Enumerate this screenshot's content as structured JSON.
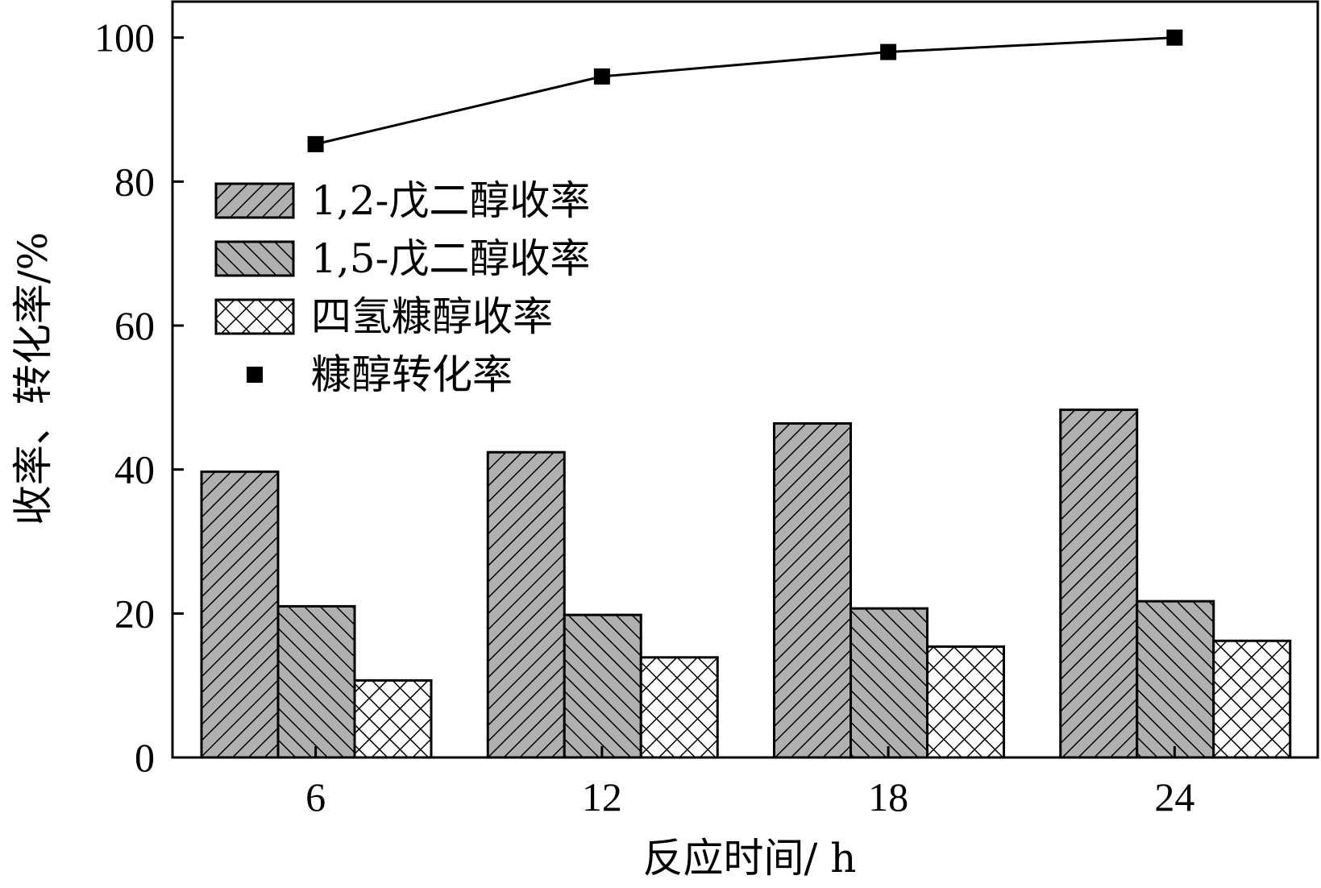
{
  "chart_data": {
    "type": "bar",
    "xlabel": "反应时间/ h",
    "ylabel": "收率、转化率/%",
    "categories": [
      "6",
      "12",
      "18",
      "24"
    ],
    "ylim": [
      0,
      105
    ],
    "yticks": [
      "0",
      "20",
      "40",
      "60",
      "80",
      "100"
    ],
    "legend_position": "upper-left",
    "series": [
      {
        "name": "1,2-戊二醇收率",
        "kind": "bar",
        "pattern": "diagonal-up",
        "fill": "#b0b0b0",
        "values": [
          39.7,
          42.4,
          46.4,
          48.3
        ]
      },
      {
        "name": "1,5-戊二醇收率",
        "kind": "bar",
        "pattern": "diagonal-down",
        "fill": "#b0b0b0",
        "values": [
          21.0,
          19.8,
          20.7,
          21.7
        ]
      },
      {
        "name": "四氢糠醇收率",
        "kind": "bar",
        "pattern": "crosshatch",
        "fill": "#ffffff",
        "values": [
          10.7,
          13.9,
          15.4,
          16.2
        ]
      },
      {
        "name": "糠醇转化率",
        "kind": "line",
        "marker": "square",
        "color": "#000000",
        "values": [
          85.2,
          94.6,
          98.0,
          100.0
        ]
      }
    ]
  }
}
